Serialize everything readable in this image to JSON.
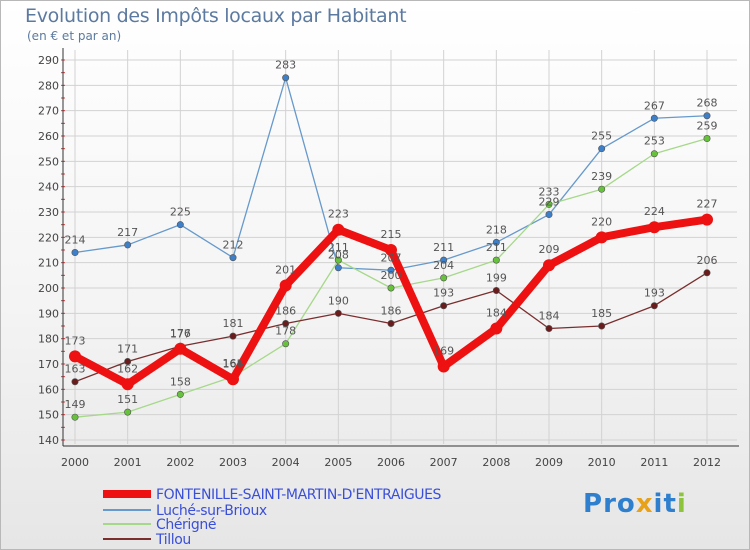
{
  "header": {
    "title": "Evolution des Impôts locaux par Habitant",
    "subtitle": "(en € et par an)"
  },
  "logo": {
    "text": "Proxiti",
    "letters": [
      {
        "ch": "P",
        "color": "#2f7fcf"
      },
      {
        "ch": "r",
        "color": "#2f7fcf"
      },
      {
        "ch": "o",
        "color": "#2f7fcf"
      },
      {
        "ch": "x",
        "color": "#e8a21a"
      },
      {
        "ch": "i",
        "color": "#2f7fcf"
      },
      {
        "ch": "t",
        "color": "#2f7fcf"
      },
      {
        "ch": "i",
        "color": "#8cc43c"
      }
    ]
  },
  "chart_data": {
    "type": "line",
    "title": "Evolution des Impôts locaux par Habitant",
    "subtitle": "(en € et par an)",
    "x": [
      "2000",
      "2001",
      "2002",
      "2003",
      "2004",
      "2005",
      "2006",
      "2007",
      "2008",
      "2009",
      "2010",
      "2011",
      "2012"
    ],
    "ylim": [
      140,
      290
    ],
    "yticks": [
      "140",
      "150",
      "160",
      "170",
      "180",
      "190",
      "200",
      "210",
      "220",
      "230",
      "240",
      "250",
      "260",
      "270",
      "280",
      "290"
    ],
    "grid": true,
    "legend_position": "bottom",
    "series": [
      {
        "name": "FONTENILLE-SAINT-MARTIN-D'ENTRAIGUES",
        "color": "#ee1111",
        "marker_color": "#ee1111",
        "label_color": "#555555",
        "thick": true,
        "values": [
          173,
          162,
          176,
          164,
          201,
          223,
          215,
          169,
          184,
          209,
          220,
          224,
          227
        ],
        "labels": [
          "173",
          "162",
          "176",
          "164",
          "201",
          "223",
          "215",
          "169",
          "184",
          "209",
          "220",
          "224",
          "227"
        ]
      },
      {
        "name": "Luché-sur-Brioux",
        "color": "#6699cc",
        "marker_color": "#3d7fc8",
        "label_color": "#555555",
        "thick": false,
        "values": [
          214,
          217,
          225,
          212,
          283,
          208,
          207,
          211,
          218,
          229,
          255,
          267,
          268
        ],
        "labels": [
          "214",
          "217",
          "225",
          "212",
          "283",
          "208",
          "207",
          "211",
          "218",
          "229",
          "255",
          "267",
          "268"
        ]
      },
      {
        "name": "Chérigné",
        "color": "#a6d88a",
        "marker_color": "#66c23a",
        "label_color": "#555555",
        "thick": false,
        "values": [
          149,
          151,
          158,
          165,
          178,
          211,
          200,
          204,
          211,
          233,
          239,
          253,
          259
        ],
        "labels": [
          "149",
          "151",
          "158",
          "165",
          "178",
          "211",
          "200",
          "204",
          "211",
          "233",
          "239",
          "253",
          "259"
        ]
      },
      {
        "name": "Tillou",
        "color": "#7a2e2e",
        "marker_color": "#6a1c1c",
        "label_color": "#555555",
        "thick": false,
        "values": [
          163,
          171,
          177,
          181,
          186,
          190,
          186,
          193,
          199,
          184,
          185,
          193,
          206
        ],
        "labels": [
          "163",
          "171",
          "177",
          "181",
          "186",
          "190",
          "186",
          "193",
          "199",
          "184",
          "185",
          "193",
          "206"
        ]
      }
    ]
  }
}
